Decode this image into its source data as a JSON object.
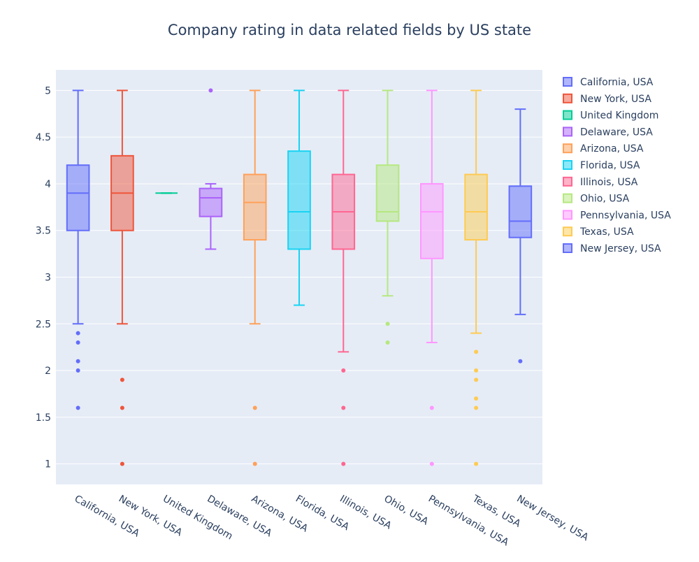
{
  "chart_data": {
    "type": "box",
    "title": "Company rating in data related fields by US state",
    "xlabel": "",
    "ylabel": "",
    "ylim": [
      0.78,
      5.22
    ],
    "yticks": [
      "1",
      "1.5",
      "2",
      "2.5",
      "3",
      "3.5",
      "4",
      "4.5",
      "5"
    ],
    "ytick_values": [
      1,
      1.5,
      2,
      2.5,
      3,
      3.5,
      4,
      4.5,
      5
    ],
    "grid": true,
    "legend_position": "top-right",
    "plot_background": "#e5ecf6",
    "series": [
      {
        "name": "California, USA",
        "color": "#636efa",
        "min": 2.5,
        "q1": 3.5,
        "median": 3.9,
        "q3": 4.2,
        "max": 5.0,
        "outliers": [
          2.4,
          2.3,
          2.1,
          2.0,
          1.6
        ]
      },
      {
        "name": "New York, USA",
        "color": "#ef553b",
        "min": 2.5,
        "q1": 3.5,
        "median": 3.9,
        "q3": 4.3,
        "max": 5.0,
        "outliers": [
          1.9,
          1.6,
          1.0
        ]
      },
      {
        "name": "United Kingdom",
        "color": "#00cc96",
        "min": 3.9,
        "q1": 3.9,
        "median": 3.9,
        "q3": 3.9,
        "max": 3.9,
        "outliers": []
      },
      {
        "name": "Delaware, USA",
        "color": "#ab63fa",
        "min": 3.3,
        "q1": 3.65,
        "median": 3.85,
        "q3": 3.95,
        "max": 4.0,
        "outliers": [
          5.0
        ]
      },
      {
        "name": "Arizona, USA",
        "color": "#ffa15a",
        "min": 2.5,
        "q1": 3.4,
        "median": 3.8,
        "q3": 4.1,
        "max": 5.0,
        "outliers": [
          1.6,
          1.0
        ]
      },
      {
        "name": "Florida, USA",
        "color": "#19d3f3",
        "min": 2.7,
        "q1": 3.3,
        "median": 3.7,
        "q3": 4.35,
        "max": 5.0,
        "outliers": []
      },
      {
        "name": "Illinois, USA",
        "color": "#ff6692",
        "min": 2.2,
        "q1": 3.3,
        "median": 3.7,
        "q3": 4.1,
        "max": 5.0,
        "outliers": [
          2.0,
          1.6,
          1.0
        ]
      },
      {
        "name": "Ohio, USA",
        "color": "#b6e880",
        "min": 2.8,
        "q1": 3.6,
        "median": 3.7,
        "q3": 4.2,
        "max": 5.0,
        "outliers": [
          2.5,
          2.3
        ]
      },
      {
        "name": "Pennsylvania, USA",
        "color": "#ff97ff",
        "min": 2.3,
        "q1": 3.2,
        "median": 3.7,
        "q3": 4.0,
        "max": 5.0,
        "outliers": [
          1.6,
          1.0
        ]
      },
      {
        "name": "Texas, USA",
        "color": "#fecb52",
        "min": 2.4,
        "q1": 3.4,
        "median": 3.7,
        "q3": 4.1,
        "max": 5.0,
        "outliers": [
          2.2,
          2.0,
          1.9,
          1.7,
          1.6,
          1.0
        ]
      },
      {
        "name": "New Jersey, USA",
        "color": "#636efa",
        "min": 2.6,
        "q1": 3.425,
        "median": 3.6,
        "q3": 3.975,
        "max": 4.8,
        "outliers": [
          2.1
        ]
      }
    ]
  }
}
